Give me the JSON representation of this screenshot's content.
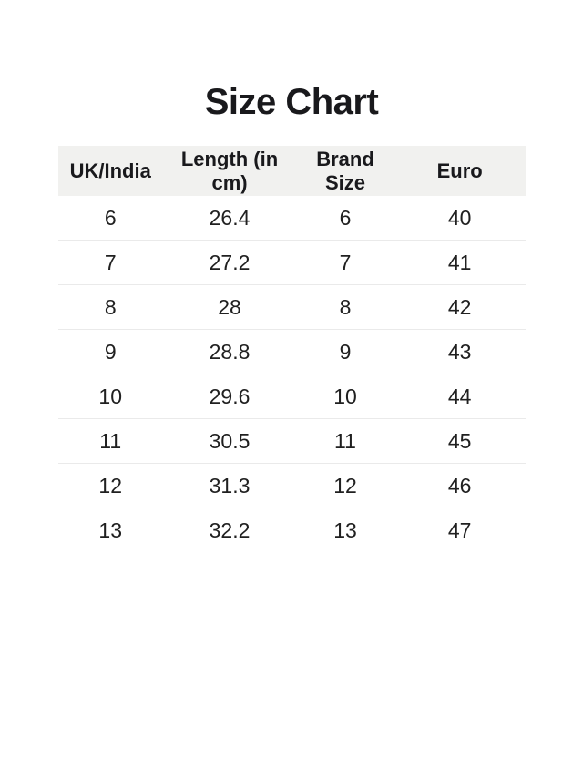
{
  "title": "Size Chart",
  "table": {
    "headers": [
      "UK/India",
      "Length (in cm)",
      "Brand Size",
      "Euro"
    ],
    "rows": [
      [
        "6",
        "26.4",
        "6",
        "40"
      ],
      [
        "7",
        "27.2",
        "7",
        "41"
      ],
      [
        "8",
        "28",
        "8",
        "42"
      ],
      [
        "9",
        "28.8",
        "9",
        "43"
      ],
      [
        "10",
        "29.6",
        "10",
        "44"
      ],
      [
        "11",
        "30.5",
        "11",
        "45"
      ],
      [
        "12",
        "31.3",
        "12",
        "46"
      ],
      [
        "13",
        "32.2",
        "13",
        "47"
      ]
    ]
  },
  "colors": {
    "page_bg": "#ffffff",
    "header_bg": "#f1f1ef",
    "row_divider": "#eaeaea",
    "title_text": "#19191c",
    "cell_text": "#202020"
  }
}
